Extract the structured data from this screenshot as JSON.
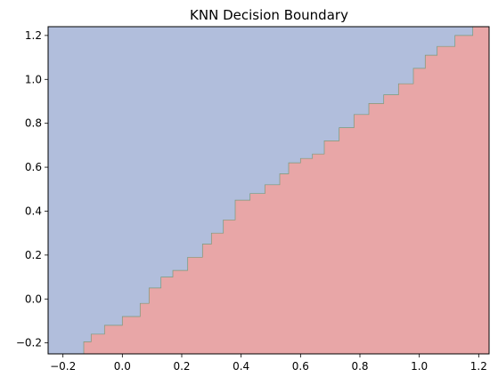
{
  "chart_data": {
    "type": "area",
    "title": "KNN Decision Boundary",
    "xlabel": "",
    "ylabel": "",
    "xlim": [
      -0.25,
      1.235
    ],
    "ylim": [
      -0.25,
      1.24
    ],
    "xticks": [
      -0.2,
      0.0,
      0.2,
      0.4,
      0.6,
      0.8,
      1.0,
      1.2
    ],
    "xtick_labels": [
      "−0.2",
      "0.0",
      "0.2",
      "0.4",
      "0.6",
      "0.8",
      "1.0",
      "1.2"
    ],
    "yticks": [
      -0.2,
      0.0,
      0.2,
      0.4,
      0.6,
      0.8,
      1.0,
      1.2
    ],
    "ytick_labels": [
      "−0.2",
      "0.0",
      "0.2",
      "0.4",
      "0.6",
      "0.8",
      "1.0",
      "1.2"
    ],
    "grid": false,
    "legend": "none",
    "regions": [
      {
        "class": "upper-left",
        "color": "#b1bedc"
      },
      {
        "class": "lower-right",
        "color": "#e8a6a7"
      }
    ],
    "boundary_color": "#7a9a7a",
    "boundary": [
      [
        -0.25,
        -0.265
      ],
      [
        -0.205,
        -0.25
      ],
      [
        -0.13,
        -0.195
      ],
      [
        -0.105,
        -0.16
      ],
      [
        -0.06,
        -0.12
      ],
      [
        0.0,
        -0.08
      ],
      [
        0.06,
        -0.02
      ],
      [
        0.09,
        0.05
      ],
      [
        0.13,
        0.1
      ],
      [
        0.17,
        0.13
      ],
      [
        0.22,
        0.19
      ],
      [
        0.27,
        0.25
      ],
      [
        0.3,
        0.3
      ],
      [
        0.34,
        0.36
      ],
      [
        0.38,
        0.45
      ],
      [
        0.43,
        0.48
      ],
      [
        0.48,
        0.52
      ],
      [
        0.53,
        0.57
      ],
      [
        0.56,
        0.62
      ],
      [
        0.6,
        0.64
      ],
      [
        0.64,
        0.66
      ],
      [
        0.68,
        0.72
      ],
      [
        0.73,
        0.78
      ],
      [
        0.78,
        0.84
      ],
      [
        0.83,
        0.89
      ],
      [
        0.88,
        0.93
      ],
      [
        0.93,
        0.98
      ],
      [
        0.98,
        1.05
      ],
      [
        1.02,
        1.11
      ],
      [
        1.06,
        1.15
      ],
      [
        1.12,
        1.2
      ],
      [
        1.18,
        1.24
      ]
    ]
  }
}
